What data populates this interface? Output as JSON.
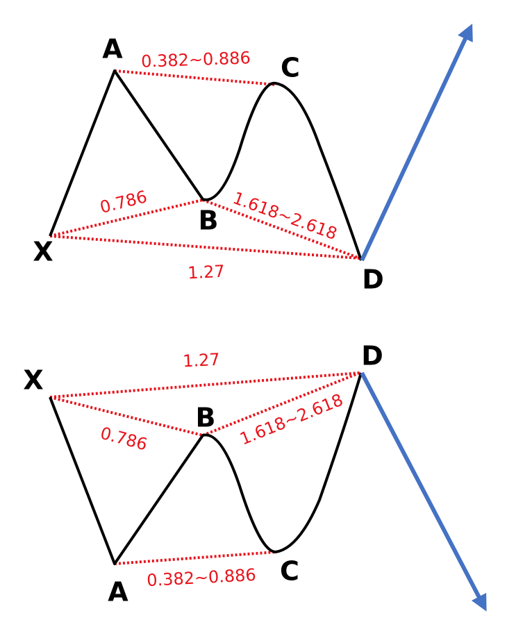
{
  "patterns": [
    {
      "points": [
        "X",
        "A",
        "B",
        "C",
        "D"
      ],
      "ratios": [
        "0.382~0.886",
        "0.786",
        "1.618~2.618",
        "1.27"
      ]
    },
    {
      "points": [
        "X",
        "A",
        "B",
        "C",
        "D"
      ],
      "ratios": [
        "0.382~0.886",
        "0.786",
        "1.618~2.618",
        "1.27"
      ]
    }
  ]
}
